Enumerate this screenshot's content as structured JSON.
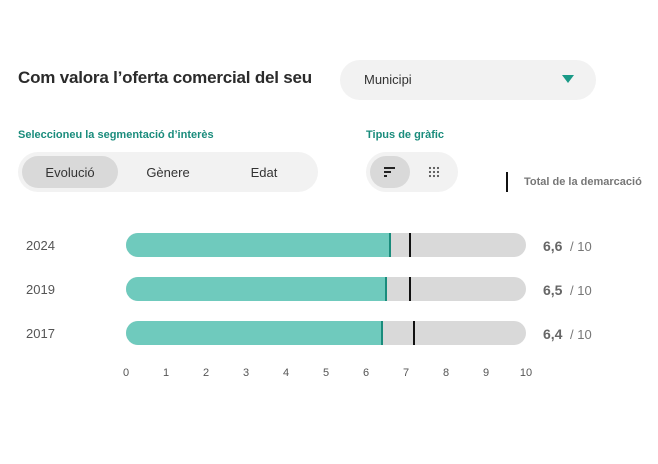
{
  "title": "Com valora l’oferta comercial del seu",
  "select": {
    "value": "Municipi"
  },
  "segmentation": {
    "label": "Seleccioneu la segmentació d’interès",
    "options": [
      "Evolució",
      "Gènere",
      "Edat"
    ],
    "active": "Evolució"
  },
  "chart_type": {
    "label": "Tipus de gràfic",
    "options": [
      {
        "icon": "bar-chart-icon",
        "active": true
      },
      {
        "icon": "dot-grid-icon",
        "active": false
      }
    ]
  },
  "legend": {
    "total_label": "Total de la demarcació"
  },
  "colors": {
    "accent": "#6fcabd",
    "accent_line": "#1a8c7c",
    "track": "#d9d9d9",
    "marker": "#111111"
  },
  "chart_data": {
    "type": "bar",
    "orientation": "horizontal",
    "categories": [
      "2024",
      "2019",
      "2017"
    ],
    "series": [
      {
        "values": [
          6.6,
          6.5,
          6.4
        ]
      },
      {
        "name": "Total de la demarcació",
        "values": [
          7.1,
          7.1,
          7.2
        ]
      }
    ],
    "value_labels": [
      "6,6",
      "6,5",
      "6,4"
    ],
    "value_suffix": "/ 10",
    "xlim": [
      0,
      10
    ],
    "x_ticks": [
      "0",
      "1",
      "2",
      "3",
      "4",
      "5",
      "6",
      "7",
      "8",
      "9",
      "10"
    ],
    "grid": false
  }
}
